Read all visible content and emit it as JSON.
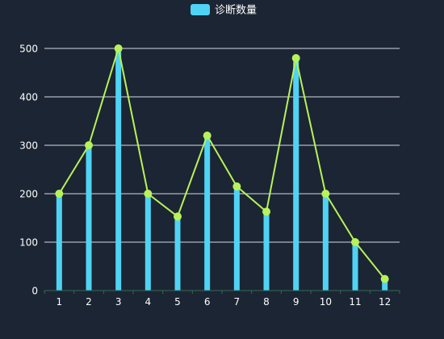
{
  "chart_data": {
    "type": "bar",
    "categories": [
      "1",
      "2",
      "3",
      "4",
      "5",
      "6",
      "7",
      "8",
      "9",
      "10",
      "11",
      "12"
    ],
    "series": [
      {
        "name": "诊断数量",
        "type": "bar",
        "values": [
          200,
          300,
          500,
          200,
          153,
          320,
          215,
          163,
          480,
          200,
          100,
          24
        ]
      },
      {
        "type": "line",
        "values": [
          200,
          300,
          500,
          200,
          153,
          320,
          215,
          163,
          480,
          200,
          100,
          24
        ]
      }
    ],
    "yticks": [
      "0",
      "100",
      "200",
      "300",
      "400",
      "500"
    ],
    "ylim": [
      0,
      500
    ],
    "grid": true,
    "legend": "top-center",
    "colors": {
      "background": "#1c2533",
      "bar": "#4fd3f5",
      "line": "#b8f25a",
      "grid": "#d7dce3",
      "text": "#ffffff"
    }
  }
}
